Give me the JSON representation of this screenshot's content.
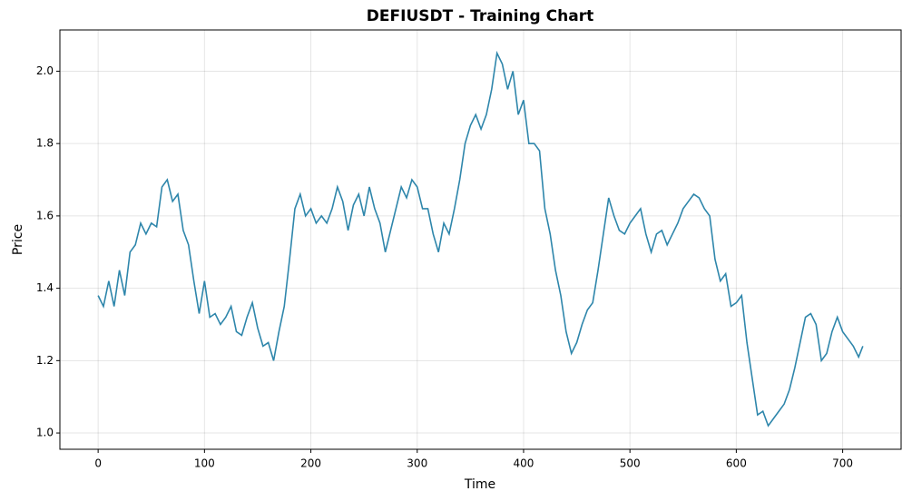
{
  "chart_data": {
    "type": "line",
    "title": "DEFIUSDT - Training Chart",
    "x_label": "Time",
    "y_label": "Price",
    "x": [
      0,
      5,
      10,
      15,
      20,
      25,
      30,
      35,
      40,
      45,
      50,
      55,
      60,
      65,
      70,
      75,
      80,
      85,
      90,
      95,
      100,
      105,
      110,
      115,
      120,
      125,
      130,
      135,
      140,
      145,
      150,
      155,
      160,
      165,
      170,
      175,
      180,
      185,
      190,
      195,
      200,
      205,
      210,
      215,
      220,
      225,
      230,
      235,
      240,
      245,
      250,
      255,
      260,
      265,
      270,
      275,
      280,
      285,
      290,
      295,
      300,
      305,
      310,
      315,
      320,
      325,
      330,
      335,
      340,
      345,
      350,
      355,
      360,
      365,
      370,
      375,
      380,
      385,
      390,
      395,
      400,
      405,
      410,
      415,
      420,
      425,
      430,
      435,
      440,
      445,
      450,
      455,
      460,
      465,
      470,
      475,
      480,
      485,
      490,
      495,
      500,
      505,
      510,
      515,
      520,
      525,
      530,
      535,
      540,
      545,
      550,
      555,
      560,
      565,
      570,
      575,
      580,
      585,
      590,
      595,
      600,
      605,
      610,
      615,
      620,
      625,
      630,
      635,
      640,
      645,
      650,
      655,
      660,
      665,
      670,
      675,
      680,
      685,
      690,
      695,
      700,
      705,
      710,
      715,
      719
    ],
    "series": [
      {
        "name": "Price",
        "color": "#2e86ab",
        "values": [
          1.38,
          1.35,
          1.42,
          1.35,
          1.45,
          1.38,
          1.5,
          1.52,
          1.58,
          1.55,
          1.58,
          1.57,
          1.68,
          1.7,
          1.64,
          1.66,
          1.56,
          1.52,
          1.42,
          1.33,
          1.42,
          1.32,
          1.33,
          1.3,
          1.32,
          1.35,
          1.28,
          1.27,
          1.32,
          1.36,
          1.29,
          1.24,
          1.25,
          1.2,
          1.28,
          1.35,
          1.48,
          1.62,
          1.66,
          1.6,
          1.62,
          1.58,
          1.6,
          1.58,
          1.62,
          1.68,
          1.64,
          1.56,
          1.63,
          1.66,
          1.6,
          1.68,
          1.62,
          1.58,
          1.5,
          1.56,
          1.62,
          1.68,
          1.65,
          1.7,
          1.68,
          1.62,
          1.62,
          1.55,
          1.5,
          1.58,
          1.55,
          1.62,
          1.7,
          1.8,
          1.85,
          1.88,
          1.84,
          1.88,
          1.95,
          2.05,
          2.02,
          1.95,
          2.0,
          1.88,
          1.92,
          1.8,
          1.8,
          1.78,
          1.62,
          1.55,
          1.45,
          1.38,
          1.28,
          1.22,
          1.25,
          1.3,
          1.34,
          1.36,
          1.45,
          1.55,
          1.65,
          1.6,
          1.56,
          1.55,
          1.58,
          1.6,
          1.62,
          1.55,
          1.5,
          1.55,
          1.56,
          1.52,
          1.55,
          1.58,
          1.62,
          1.64,
          1.66,
          1.65,
          1.62,
          1.6,
          1.48,
          1.42,
          1.44,
          1.35,
          1.36,
          1.38,
          1.25,
          1.15,
          1.05,
          1.06,
          1.02,
          1.04,
          1.06,
          1.08,
          1.12,
          1.18,
          1.25,
          1.32,
          1.33,
          1.3,
          1.2,
          1.22,
          1.28,
          1.32,
          1.28,
          1.26,
          1.24,
          1.21,
          1.24
        ]
      }
    ],
    "xlim": [
      -35.95,
      754.95
    ],
    "xticks": [
      0,
      100,
      200,
      300,
      400,
      500,
      600,
      700
    ],
    "ylim": [
      0.955,
      2.114
    ],
    "yticks": [
      {
        "value": 1.0,
        "label": "1.0"
      },
      {
        "value": 1.2,
        "label": "1.2"
      },
      {
        "value": 1.4,
        "label": "1.4"
      },
      {
        "value": 1.6,
        "label": "1.6"
      },
      {
        "value": 1.8,
        "label": "1.8"
      },
      {
        "value": 2.0,
        "label": "2.0"
      }
    ],
    "grid": true
  }
}
